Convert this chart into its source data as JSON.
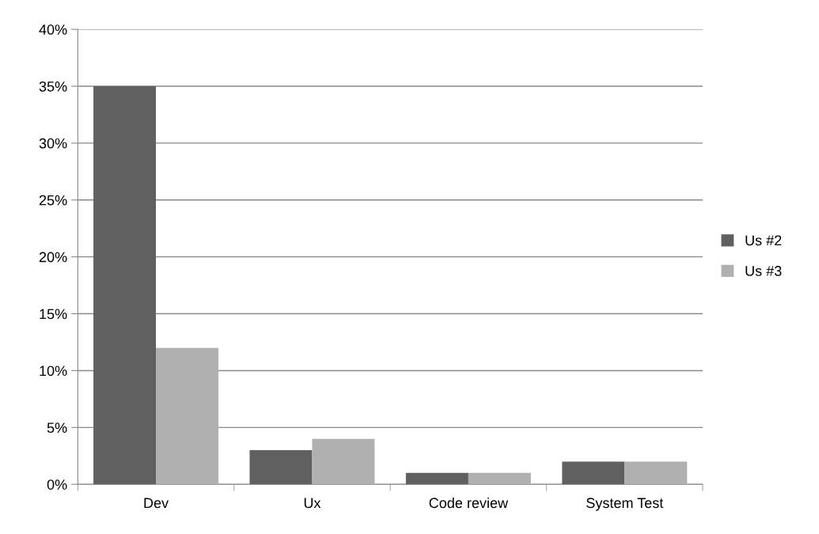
{
  "chart_data": {
    "type": "bar",
    "categories": [
      "Dev",
      "Ux",
      "Code review",
      "System Test"
    ],
    "series": [
      {
        "name": "Us #2",
        "color": "#606060",
        "values": [
          35,
          3,
          1,
          2
        ]
      },
      {
        "name": "Us #3",
        "color": "#b0b0b0",
        "values": [
          12,
          4,
          1,
          2
        ]
      }
    ],
    "ylim": [
      0,
      40
    ],
    "yticks": [
      {
        "value": 0,
        "label": "0%"
      },
      {
        "value": 5,
        "label": "5%"
      },
      {
        "value": 10,
        "label": "10%"
      },
      {
        "value": 15,
        "label": "15%"
      },
      {
        "value": 20,
        "label": "20%"
      },
      {
        "value": 25,
        "label": "25%"
      },
      {
        "value": 30,
        "label": "30%"
      },
      {
        "value": 35,
        "label": "35%"
      },
      {
        "value": 40,
        "label": "40%"
      }
    ],
    "grid": "y",
    "legend": "right"
  }
}
